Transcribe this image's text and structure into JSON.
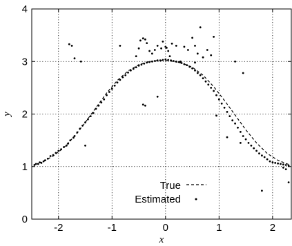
{
  "chart_data": {
    "type": "scatter",
    "title": "",
    "xlabel": "x",
    "ylabel": "y",
    "xlim": [
      -2.5,
      2.35
    ],
    "ylim": [
      0,
      4
    ],
    "xticks": [
      -2,
      -1,
      0,
      1,
      2
    ],
    "yticks": [
      0,
      1,
      2,
      3,
      4
    ],
    "xtick_labels": [
      "-2",
      "-1",
      "0",
      "1",
      "2"
    ],
    "ytick_labels": [
      "0",
      "1",
      "2",
      "3",
      "4"
    ],
    "grid": true,
    "legend_position": "bottom-center",
    "colors": {
      "axes": "#000000",
      "grid": "#000000",
      "background": "#ffffff"
    },
    "series": [
      {
        "name": "True",
        "style": "dashed-line",
        "x": [
          -2.45,
          -2.3,
          -2.1,
          -1.9,
          -1.7,
          -1.5,
          -1.3,
          -1.1,
          -0.9,
          -0.7,
          -0.5,
          -0.3,
          -0.1,
          0.0,
          0.1,
          0.3,
          0.5,
          0.7,
          0.9,
          1.1,
          1.3,
          1.5,
          1.7,
          1.9,
          2.1,
          2.3
        ],
        "y": [
          1.04,
          1.09,
          1.2,
          1.36,
          1.58,
          1.84,
          2.12,
          2.4,
          2.64,
          2.82,
          2.94,
          3.0,
          3.02,
          3.02,
          3.01,
          2.97,
          2.89,
          2.74,
          2.52,
          2.26,
          1.98,
          1.7,
          1.45,
          1.25,
          1.12,
          1.04
        ]
      },
      {
        "name": "Estimated",
        "style": "points",
        "x": [
          -2.45,
          -2.42,
          -2.38,
          -2.35,
          -2.32,
          -2.28,
          -2.25,
          -2.2,
          -2.15,
          -2.1,
          -2.05,
          -2.0,
          -1.95,
          -1.9,
          -1.85,
          -1.82,
          -1.78,
          -1.72,
          -1.7,
          -1.65,
          -1.6,
          -1.55,
          -1.5,
          -1.45,
          -1.4,
          -1.35,
          -1.3,
          -1.25,
          -1.2,
          -1.15,
          -1.1,
          -1.05,
          -1.0,
          -0.95,
          -0.9,
          -0.85,
          -0.8,
          -0.75,
          -0.7,
          -0.65,
          -0.6,
          -0.55,
          -0.5,
          -0.45,
          -0.4,
          -0.35,
          -0.3,
          -0.25,
          -0.2,
          -0.15,
          -0.1,
          -0.05,
          0.0,
          0.05,
          0.1,
          0.15,
          0.2,
          0.25,
          0.3,
          0.35,
          0.4,
          0.45,
          0.5,
          0.55,
          0.6,
          0.65,
          0.7,
          0.75,
          0.8,
          0.85,
          0.9,
          0.95,
          1.0,
          1.05,
          1.1,
          1.15,
          1.2,
          1.25,
          1.3,
          1.35,
          1.4,
          1.45,
          1.5,
          1.55,
          1.6,
          1.65,
          1.7,
          1.75,
          1.8,
          1.85,
          1.9,
          1.95,
          2.0,
          2.05,
          2.1,
          2.15,
          2.2,
          2.25,
          2.3,
          -1.8,
          -1.75,
          -1.7,
          -1.58,
          -0.85,
          -0.55,
          -0.5,
          -0.47,
          -0.42,
          -0.38,
          -0.35,
          -0.3,
          -0.25,
          -0.2,
          -0.15,
          -0.08,
          -0.05,
          0.0,
          0.02,
          0.05,
          0.08,
          0.12,
          0.2,
          0.28,
          0.35,
          0.42,
          0.5,
          0.55,
          0.6,
          0.65,
          0.7,
          0.78,
          0.85,
          0.55,
          0.9,
          1.3,
          1.45,
          -0.42,
          -0.38,
          -0.15,
          0.95,
          1.15,
          1.4,
          -1.5,
          2.3,
          1.8,
          2.2,
          2.25
        ],
        "y": [
          1.03,
          1.05,
          1.05,
          1.08,
          1.07,
          1.1,
          1.12,
          1.15,
          1.2,
          1.22,
          1.26,
          1.3,
          1.33,
          1.37,
          1.4,
          1.44,
          1.5,
          1.55,
          1.58,
          1.65,
          1.72,
          1.78,
          1.84,
          1.9,
          1.96,
          2.02,
          2.1,
          2.16,
          2.22,
          2.28,
          2.36,
          2.42,
          2.48,
          2.54,
          2.6,
          2.65,
          2.7,
          2.74,
          2.79,
          2.83,
          2.86,
          2.89,
          2.92,
          2.94,
          2.96,
          2.98,
          2.99,
          3.0,
          3.01,
          3.02,
          3.02,
          3.03,
          3.04,
          3.03,
          3.02,
          3.01,
          3.0,
          2.99,
          2.97,
          2.95,
          2.93,
          2.9,
          2.87,
          2.83,
          2.78,
          2.74,
          2.68,
          2.62,
          2.56,
          2.5,
          2.44,
          2.36,
          2.28,
          2.2,
          2.12,
          2.04,
          1.96,
          1.88,
          1.82,
          1.74,
          1.66,
          1.58,
          1.52,
          1.45,
          1.4,
          1.35,
          1.3,
          1.25,
          1.21,
          1.18,
          1.14,
          1.1,
          1.08,
          1.07,
          1.06,
          1.05,
          1.04,
          1.03,
          1.02,
          3.33,
          3.3,
          3.06,
          3.0,
          3.3,
          3.1,
          3.25,
          3.4,
          3.44,
          3.42,
          3.35,
          3.2,
          3.15,
          3.22,
          3.3,
          3.25,
          3.38,
          3.28,
          3.26,
          3.2,
          3.1,
          3.34,
          3.3,
          3.0,
          3.28,
          3.22,
          3.45,
          3.3,
          3.15,
          3.65,
          3.08,
          3.22,
          3.12,
          2.98,
          3.47,
          3.0,
          2.78,
          2.18,
          2.16,
          2.33,
          1.97,
          1.56,
          1.45,
          1.4,
          0.7,
          0.54,
          0.98,
          0.95
        ]
      }
    ]
  },
  "legend": {
    "entries": [
      {
        "label": "True",
        "style": "dashed-line"
      },
      {
        "label": "Estimated",
        "style": "point"
      }
    ]
  }
}
